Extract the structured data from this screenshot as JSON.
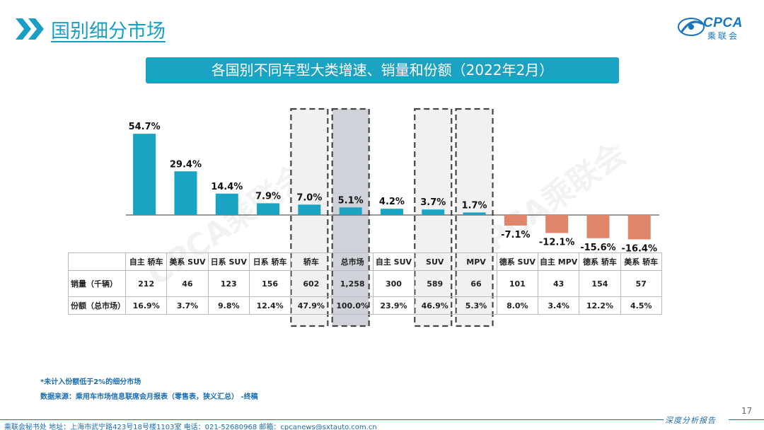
{
  "header": {
    "title": "国别细分市场",
    "logo_text": "CPCA",
    "logo_sub": "乘联会"
  },
  "banner": {
    "title": "各国别不同车型大类增速、销量和份额（2022年2月）"
  },
  "chart_data": {
    "type": "bar",
    "title": "各国别不同车型大类增速、销量和份额（2022年2月）",
    "categories": [
      "自主 轿车",
      "美系 SUV",
      "日系 SUV",
      "日系 轿车",
      "轿车",
      "总市场",
      "自主 SUV",
      "SUV",
      "MPV",
      "德系 SUV",
      "自主 MPV",
      "德系 轿车",
      "美系 轿车"
    ],
    "values": [
      54.7,
      29.4,
      14.4,
      7.9,
      7.0,
      5.1,
      4.2,
      3.7,
      1.7,
      -7.1,
      -12.1,
      -15.6,
      -16.4
    ],
    "value_labels": [
      "54.7%",
      "29.4%",
      "14.4%",
      "7.9%",
      "7.0%",
      "5.1%",
      "4.2%",
      "3.7%",
      "1.7%",
      "-7.1%",
      "-12.1%",
      "-15.6%",
      "-16.4%"
    ],
    "highlighted": [
      "轿车",
      "总市场",
      "SUV",
      "MPV"
    ],
    "highlighted_total": "总市场",
    "xlabel": "",
    "ylabel": "",
    "ylim": [
      -20,
      60
    ],
    "grid": false,
    "colors": {
      "positive": "#1aa3c2",
      "negative": "#e0856a",
      "axis": "#333333"
    }
  },
  "table": {
    "rows": [
      {
        "label": "销量（千辆）",
        "values": [
          "212",
          "46",
          "123",
          "156",
          "602",
          "1,258",
          "300",
          "589",
          "66",
          "101",
          "43",
          "154",
          "57"
        ]
      },
      {
        "label": "份额（总市场）",
        "values": [
          "16.9%",
          "3.7%",
          "9.8%",
          "12.4%",
          "47.9%",
          "100.0%",
          "23.9%",
          "46.9%",
          "5.3%",
          "8.0%",
          "3.4%",
          "12.2%",
          "4.5%"
        ]
      }
    ]
  },
  "notes": {
    "note1": "*未计入份额低于2%的细分市场",
    "note2": "数据来源：乘用车市场信息联席会月报表（零售表，狭义汇总） -终稿"
  },
  "footer": {
    "page_number": "17",
    "report_label": "深度分析报告",
    "info": "乘联会秘书处   地址：上海市武宁路423号18号楼1103室   电话：021-52680968   邮箱：cpcanews@sxtauto.com.cn"
  },
  "watermark": "CPCA乘联会"
}
